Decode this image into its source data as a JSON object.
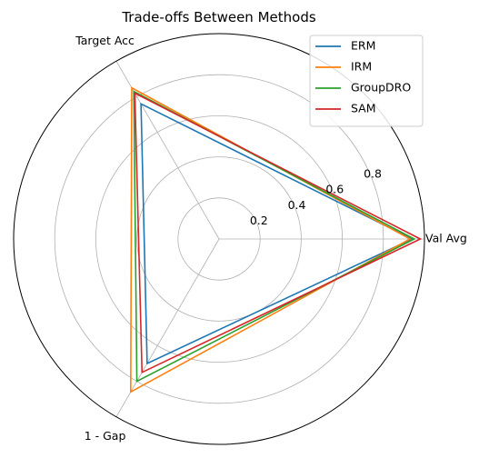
{
  "chart_data": {
    "type": "radar",
    "title": "Trade-offs Between Methods",
    "axes": [
      "Val Avg",
      "Target Acc",
      "1 - Gap"
    ],
    "rlim": [
      0,
      1.0
    ],
    "rticks": [
      0.2,
      0.4,
      0.6,
      0.8
    ],
    "rtick_labels": [
      "0.2",
      "0.4",
      "0.6",
      "0.8"
    ],
    "grid": true,
    "legend_position": "top-right",
    "series": [
      {
        "name": "ERM",
        "color": "#1f77b4",
        "values": [
          0.94,
          0.76,
          0.7
        ]
      },
      {
        "name": "IRM",
        "color": "#ff7f0e",
        "values": [
          0.93,
          0.85,
          0.86
        ]
      },
      {
        "name": "GroupDRO",
        "color": "#2ca02c",
        "values": [
          0.95,
          0.83,
          0.8
        ]
      },
      {
        "name": "SAM",
        "color": "#d62728",
        "values": [
          0.98,
          0.82,
          0.75
        ]
      }
    ]
  }
}
